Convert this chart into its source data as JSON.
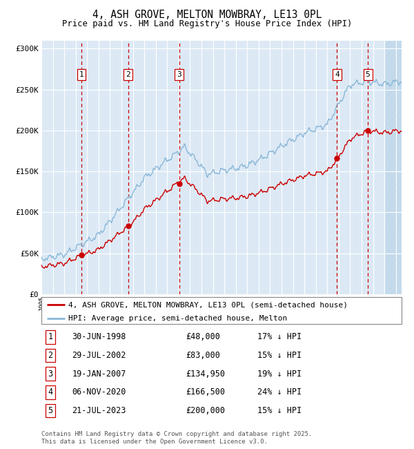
{
  "title": "4, ASH GROVE, MELTON MOWBRAY, LE13 0PL",
  "subtitle": "Price paid vs. HM Land Registry's House Price Index (HPI)",
  "ylim": [
    0,
    310000
  ],
  "yticks": [
    0,
    50000,
    100000,
    150000,
    200000,
    250000,
    300000
  ],
  "ytick_labels": [
    "£0",
    "£50K",
    "£100K",
    "£150K",
    "£200K",
    "£250K",
    "£300K"
  ],
  "xlim_start": 1995.0,
  "xlim_end": 2026.5,
  "background_color": "#dce9f5",
  "hatch_color": "#c0d8ea",
  "grid_color": "#ffffff",
  "red_line_color": "#cc0000",
  "blue_line_color": "#8ab8d8",
  "dashed_line_color": "#cc0000",
  "sale_points": [
    {
      "num": 1,
      "year": 1998.5,
      "price": 48000,
      "label": "1"
    },
    {
      "num": 2,
      "year": 2002.58,
      "price": 83000,
      "label": "2"
    },
    {
      "num": 3,
      "year": 2007.05,
      "price": 134950,
      "label": "3"
    },
    {
      "num": 4,
      "year": 2020.85,
      "price": 166500,
      "label": "4"
    },
    {
      "num": 5,
      "year": 2023.55,
      "price": 200000,
      "label": "5"
    }
  ],
  "legend_entries": [
    {
      "color": "#cc0000",
      "label": "4, ASH GROVE, MELTON MOWBRAY, LE13 0PL (semi-detached house)"
    },
    {
      "color": "#8ab8d8",
      "label": "HPI: Average price, semi-detached house, Melton"
    }
  ],
  "table_rows": [
    {
      "num": "1",
      "date": "30-JUN-1998",
      "price": "£48,000",
      "hpi": "17% ↓ HPI"
    },
    {
      "num": "2",
      "date": "29-JUL-2002",
      "price": "£83,000",
      "hpi": "15% ↓ HPI"
    },
    {
      "num": "3",
      "date": "19-JAN-2007",
      "price": "£134,950",
      "hpi": "19% ↓ HPI"
    },
    {
      "num": "4",
      "date": "06-NOV-2020",
      "price": "£166,500",
      "hpi": "24% ↓ HPI"
    },
    {
      "num": "5",
      "date": "21-JUL-2023",
      "price": "£200,000",
      "hpi": "15% ↓ HPI"
    }
  ],
  "footnote": "Contains HM Land Registry data © Crown copyright and database right 2025.\nThis data is licensed under the Open Government Licence v3.0."
}
